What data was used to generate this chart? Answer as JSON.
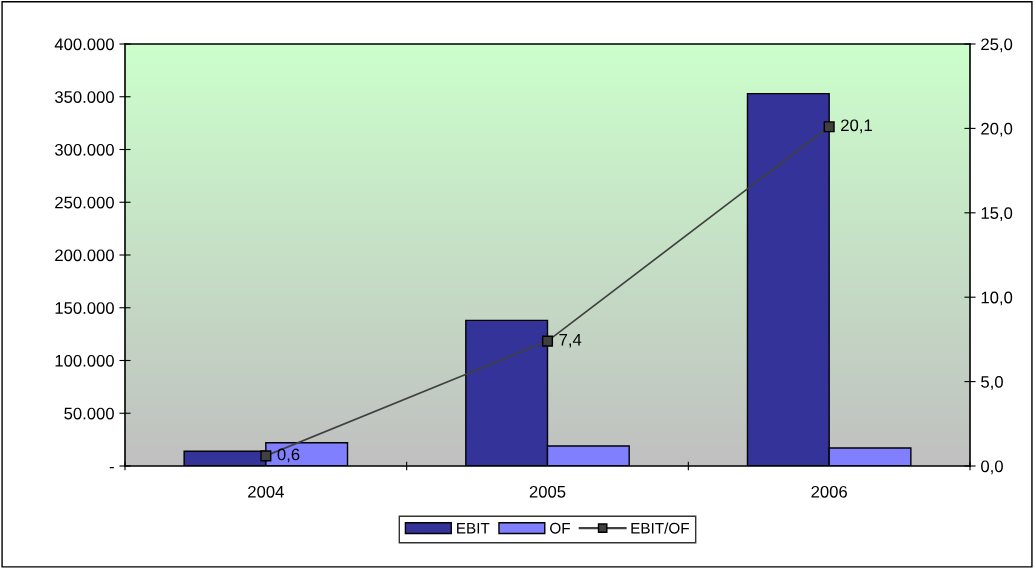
{
  "chart_data": {
    "type": "bar",
    "categories": [
      "2004",
      "2005",
      "2006"
    ],
    "series": [
      {
        "name": "EBIT",
        "color": "#333399",
        "values": [
          14000,
          138000,
          353000
        ]
      },
      {
        "name": "OF",
        "color": "#8080ff",
        "values": [
          22000,
          19000,
          17000
        ]
      },
      {
        "name": "EBIT/OF",
        "type": "line",
        "axis": "y2",
        "color": "#404040",
        "values": [
          0.6,
          7.4,
          20.1
        ],
        "value_labels": [
          "0,6",
          "7,4",
          "20,1"
        ],
        "marker": "square"
      }
    ],
    "ylim": [
      0,
      400000
    ],
    "yticks": [
      {
        "value": 0,
        "label": "-"
      },
      {
        "value": 50000,
        "label": "50.000"
      },
      {
        "value": 100000,
        "label": "100.000"
      },
      {
        "value": 150000,
        "label": "150.000"
      },
      {
        "value": 200000,
        "label": "200.000"
      },
      {
        "value": 250000,
        "label": "250.000"
      },
      {
        "value": 300000,
        "label": "300.000"
      },
      {
        "value": 350000,
        "label": "350.000"
      },
      {
        "value": 400000,
        "label": "400.000"
      }
    ],
    "y2lim": [
      0,
      25
    ],
    "y2ticks": [
      {
        "value": 0,
        "label": "0,0"
      },
      {
        "value": 5,
        "label": "5,0"
      },
      {
        "value": 10,
        "label": "10,0"
      },
      {
        "value": 15,
        "label": "15,0"
      },
      {
        "value": 20,
        "label": "20,0"
      },
      {
        "value": 25,
        "label": "25,0"
      }
    ],
    "grid": false,
    "legend": "bottom"
  }
}
